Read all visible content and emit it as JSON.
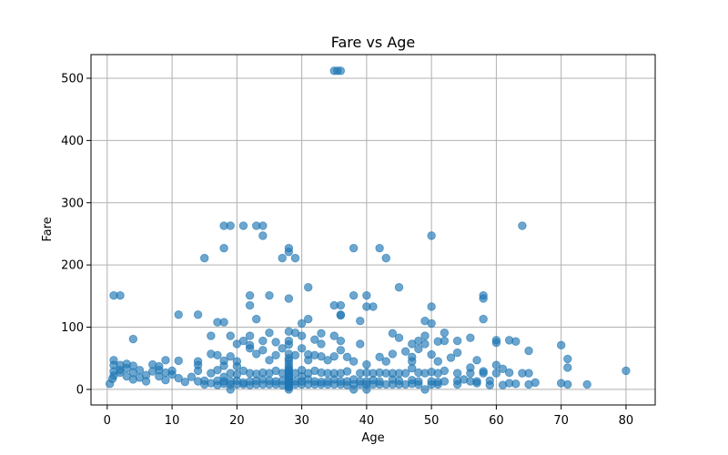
{
  "chart_data": {
    "type": "scatter",
    "title": "Fare vs Age",
    "xlabel": "Age",
    "ylabel": "Fare",
    "xlim": [
      -2.5,
      84.5
    ],
    "ylim": [
      -25,
      538
    ],
    "xticks": [
      0,
      10,
      20,
      30,
      40,
      50,
      60,
      70,
      80
    ],
    "yticks": [
      0,
      100,
      200,
      300,
      400,
      500
    ],
    "grid": true,
    "legend": "none",
    "marker_color": "#1f77b4",
    "marker_alpha": 0.65,
    "series": [
      {
        "points": [
          [
            35,
            512
          ],
          [
            36,
            512
          ],
          [
            35.5,
            512
          ],
          [
            18,
            263
          ],
          [
            19,
            263
          ],
          [
            21,
            263
          ],
          [
            23,
            263
          ],
          [
            24,
            263
          ],
          [
            64,
            263
          ],
          [
            24,
            247
          ],
          [
            50,
            247
          ],
          [
            18,
            227
          ],
          [
            28,
            227
          ],
          [
            38,
            227
          ],
          [
            42,
            227
          ],
          [
            28,
            221
          ],
          [
            15,
            211
          ],
          [
            27,
            211
          ],
          [
            29,
            211
          ],
          [
            43,
            211
          ],
          [
            31,
            164
          ],
          [
            45,
            164
          ],
          [
            1,
            151
          ],
          [
            2,
            151
          ],
          [
            22,
            151
          ],
          [
            25,
            151
          ],
          [
            38,
            151
          ],
          [
            40,
            151
          ],
          [
            58,
            151
          ],
          [
            28,
            146
          ],
          [
            58,
            146
          ],
          [
            22,
            135
          ],
          [
            35,
            135
          ],
          [
            36,
            135
          ],
          [
            40,
            133
          ],
          [
            41,
            133
          ],
          [
            50,
            133
          ],
          [
            11,
            120
          ],
          [
            14,
            120
          ],
          [
            36,
            120
          ],
          [
            36,
            119
          ],
          [
            23,
            113
          ],
          [
            31,
            113
          ],
          [
            39,
            110
          ],
          [
            49,
            110
          ],
          [
            58,
            113
          ],
          [
            17,
            108
          ],
          [
            18,
            108
          ],
          [
            30,
            106
          ],
          [
            50,
            106
          ],
          [
            28,
            93
          ],
          [
            29,
            91
          ],
          [
            25,
            91
          ],
          [
            52,
            91
          ],
          [
            16,
            86
          ],
          [
            19,
            86
          ],
          [
            22,
            86
          ],
          [
            30,
            86
          ],
          [
            33,
            90
          ],
          [
            35,
            86
          ],
          [
            44,
            90
          ],
          [
            49,
            86
          ],
          [
            4,
            81
          ],
          [
            21,
            78
          ],
          [
            24,
            78
          ],
          [
            28,
            78
          ],
          [
            32,
            80
          ],
          [
            36,
            78
          ],
          [
            45,
            83
          ],
          [
            48,
            78
          ],
          [
            52,
            78
          ],
          [
            54,
            78
          ],
          [
            56,
            83
          ],
          [
            60,
            79
          ],
          [
            62,
            79
          ],
          [
            63,
            77
          ],
          [
            20,
            73
          ],
          [
            22,
            71
          ],
          [
            26,
            76
          ],
          [
            28,
            72
          ],
          [
            33,
            73
          ],
          [
            39,
            73
          ],
          [
            47,
            73
          ],
          [
            49,
            73
          ],
          [
            51,
            77
          ],
          [
            60,
            75
          ],
          [
            70,
            71
          ],
          [
            22,
            66
          ],
          [
            24,
            63
          ],
          [
            27,
            66
          ],
          [
            30,
            66
          ],
          [
            36,
            63
          ],
          [
            46,
            61
          ],
          [
            48,
            65
          ],
          [
            65,
            62
          ],
          [
            16,
            57
          ],
          [
            17,
            55
          ],
          [
            19,
            53
          ],
          [
            23,
            57
          ],
          [
            26,
            55
          ],
          [
            29,
            55
          ],
          [
            31,
            56
          ],
          [
            32,
            55
          ],
          [
            33,
            53
          ],
          [
            35,
            53
          ],
          [
            37,
            52
          ],
          [
            42,
            52
          ],
          [
            44,
            57
          ],
          [
            47,
            52
          ],
          [
            50,
            56
          ],
          [
            53,
            51
          ],
          [
            54,
            59
          ],
          [
            14,
            45
          ],
          [
            18,
            46
          ],
          [
            20,
            45
          ],
          [
            25,
            47
          ],
          [
            28,
            46
          ],
          [
            31,
            47
          ],
          [
            34,
            47
          ],
          [
            38,
            45
          ],
          [
            40,
            40
          ],
          [
            43,
            45
          ],
          [
            47,
            45
          ],
          [
            51,
            45
          ],
          [
            57,
            47
          ],
          [
            71,
            49
          ],
          [
            1,
            47
          ],
          [
            1,
            39
          ],
          [
            2,
            39
          ],
          [
            3,
            41
          ],
          [
            4,
            38
          ],
          [
            7,
            40
          ],
          [
            8,
            37
          ],
          [
            9,
            47
          ],
          [
            11,
            46
          ],
          [
            14,
            39
          ],
          [
            18,
            38
          ],
          [
            20,
            37
          ],
          [
            0.4,
            9
          ],
          [
            0.8,
            17
          ],
          [
            1,
            29
          ],
          [
            1,
            22
          ],
          [
            2,
            31
          ],
          [
            2,
            27
          ],
          [
            3,
            21
          ],
          [
            3,
            34
          ],
          [
            4,
            16
          ],
          [
            4,
            27
          ],
          [
            5,
            19
          ],
          [
            5,
            31
          ],
          [
            6,
            23
          ],
          [
            6,
            13
          ],
          [
            7,
            29
          ],
          [
            8,
            21
          ],
          [
            8,
            31
          ],
          [
            9,
            15
          ],
          [
            9,
            27
          ],
          [
            10,
            24
          ],
          [
            10,
            30
          ],
          [
            11,
            18
          ],
          [
            12,
            12
          ],
          [
            13,
            20
          ],
          [
            14,
            13
          ],
          [
            14,
            30
          ],
          [
            15,
            8
          ],
          [
            15,
            14
          ],
          [
            16,
            10
          ],
          [
            16,
            26
          ],
          [
            17,
            7
          ],
          [
            17,
            14
          ],
          [
            17,
            31
          ],
          [
            18,
            9
          ],
          [
            18,
            20
          ],
          [
            18,
            13
          ],
          [
            19,
            8
          ],
          [
            19,
            13
          ],
          [
            19,
            26
          ],
          [
            19,
            0
          ],
          [
            20,
            8
          ],
          [
            20,
            14
          ],
          [
            20,
            24
          ],
          [
            21,
            8
          ],
          [
            21,
            11
          ],
          [
            21,
            30
          ],
          [
            22,
            7
          ],
          [
            22,
            13
          ],
          [
            22,
            26
          ],
          [
            23,
            8
          ],
          [
            23,
            14
          ],
          [
            23,
            25
          ],
          [
            24,
            8
          ],
          [
            24,
            16
          ],
          [
            24,
            27
          ],
          [
            25,
            8
          ],
          [
            25,
            14
          ],
          [
            25,
            26
          ],
          [
            26,
            8
          ],
          [
            26,
            13
          ],
          [
            26,
            30
          ],
          [
            27,
            7
          ],
          [
            27,
            14
          ],
          [
            27,
            26
          ],
          [
            28,
            0
          ],
          [
            28,
            3
          ],
          [
            28,
            5
          ],
          [
            28,
            7
          ],
          [
            28,
            8
          ],
          [
            28,
            10
          ],
          [
            28,
            12
          ],
          [
            28,
            14
          ],
          [
            28,
            16
          ],
          [
            28,
            18
          ],
          [
            28,
            20
          ],
          [
            28,
            22
          ],
          [
            28,
            24
          ],
          [
            28,
            26
          ],
          [
            28,
            29
          ],
          [
            28,
            32
          ],
          [
            28,
            35
          ],
          [
            28,
            40
          ],
          [
            28,
            50
          ],
          [
            28,
            57
          ],
          [
            29,
            8
          ],
          [
            29,
            13
          ],
          [
            29,
            26
          ],
          [
            30,
            8
          ],
          [
            30,
            13
          ],
          [
            30,
            21
          ],
          [
            30,
            31
          ],
          [
            31,
            8
          ],
          [
            31,
            16
          ],
          [
            31,
            26
          ],
          [
            32,
            8
          ],
          [
            32,
            13
          ],
          [
            32,
            30
          ],
          [
            33,
            8
          ],
          [
            33,
            12
          ],
          [
            33,
            27
          ],
          [
            34,
            8
          ],
          [
            34,
            13
          ],
          [
            34,
            26
          ],
          [
            35,
            8
          ],
          [
            35,
            16
          ],
          [
            35,
            26
          ],
          [
            36,
            8
          ],
          [
            36,
            13
          ],
          [
            36,
            26
          ],
          [
            37,
            7
          ],
          [
            37,
            13
          ],
          [
            37,
            29
          ],
          [
            38,
            8
          ],
          [
            38,
            16
          ],
          [
            38,
            0
          ],
          [
            39,
            8
          ],
          [
            39,
            13
          ],
          [
            39,
            26
          ],
          [
            40,
            8
          ],
          [
            40,
            13
          ],
          [
            40,
            27
          ],
          [
            40,
            0
          ],
          [
            41,
            8
          ],
          [
            41,
            15
          ],
          [
            41,
            26
          ],
          [
            42,
            8
          ],
          [
            42,
            13
          ],
          [
            42,
            27
          ],
          [
            43,
            8
          ],
          [
            43,
            26
          ],
          [
            44,
            8
          ],
          [
            44,
            16
          ],
          [
            44,
            26
          ],
          [
            45,
            8
          ],
          [
            45,
            14
          ],
          [
            45,
            26
          ],
          [
            46,
            8
          ],
          [
            46,
            26
          ],
          [
            47,
            9
          ],
          [
            47,
            15
          ],
          [
            47,
            34
          ],
          [
            48,
            8
          ],
          [
            48,
            13
          ],
          [
            48,
            27
          ],
          [
            49,
            0
          ],
          [
            49,
            26
          ],
          [
            50,
            8
          ],
          [
            50,
            13
          ],
          [
            50,
            28
          ],
          [
            51,
            8
          ],
          [
            51,
            12
          ],
          [
            51,
            26
          ],
          [
            52,
            13
          ],
          [
            52,
            30
          ],
          [
            54,
            8
          ],
          [
            54,
            14
          ],
          [
            54,
            26
          ],
          [
            55,
            16
          ],
          [
            56,
            13
          ],
          [
            56,
            26
          ],
          [
            56,
            35
          ],
          [
            57,
            10
          ],
          [
            57,
            13
          ],
          [
            58,
            26
          ],
          [
            58,
            29
          ],
          [
            59,
            7
          ],
          [
            59,
            14
          ],
          [
            60,
            26
          ],
          [
            60,
            39
          ],
          [
            61,
            7
          ],
          [
            61,
            33
          ],
          [
            62,
            10
          ],
          [
            62,
            27
          ],
          [
            63,
            9
          ],
          [
            64,
            26
          ],
          [
            65,
            26
          ],
          [
            65,
            8
          ],
          [
            66,
            11
          ],
          [
            70,
            10
          ],
          [
            71,
            8
          ],
          [
            71,
            35
          ],
          [
            74,
            8
          ],
          [
            80,
            30
          ]
        ]
      }
    ]
  }
}
